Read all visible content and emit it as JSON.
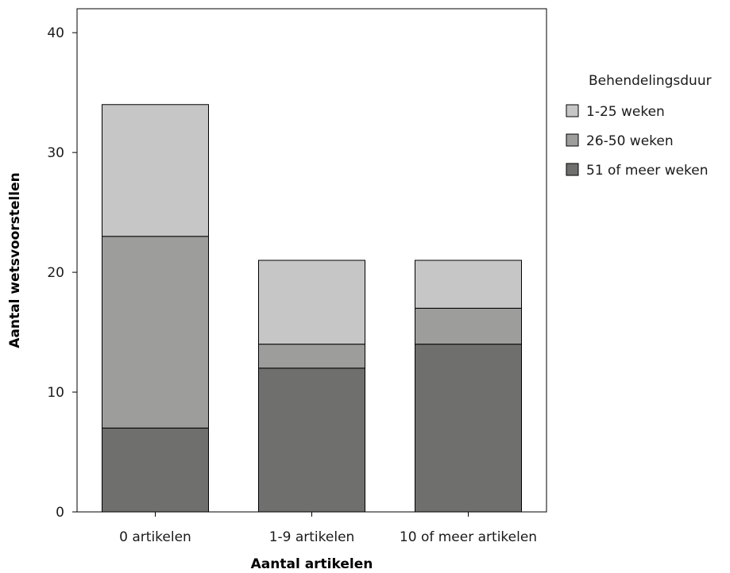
{
  "chart_data": {
    "type": "bar",
    "stacked": true,
    "categories": [
      "0 artikelen",
      "1-9 artikelen",
      "10 of meer artikelen"
    ],
    "series": [
      {
        "name": "51 of meer weken",
        "values": [
          7,
          12,
          14
        ],
        "color": "#6f6f6d"
      },
      {
        "name": "26-50 weken",
        "values": [
          16,
          2,
          3
        ],
        "color": "#9d9e9c"
      },
      {
        "name": "1-25 weken",
        "values": [
          11,
          7,
          4
        ],
        "color": "#c6c6c6"
      }
    ],
    "legend_title": "Behendelingsduur",
    "legend_order": [
      "1-25 weken",
      "26-50 weken",
      "51 of meer weken"
    ],
    "legend_placement": "right",
    "xlabel": "Aantal artikelen",
    "ylabel": "Aantal wetsvoorstellen",
    "ylim": [
      0,
      42
    ],
    "yticks": [
      0,
      10,
      20,
      30,
      40
    ],
    "grid": false
  }
}
